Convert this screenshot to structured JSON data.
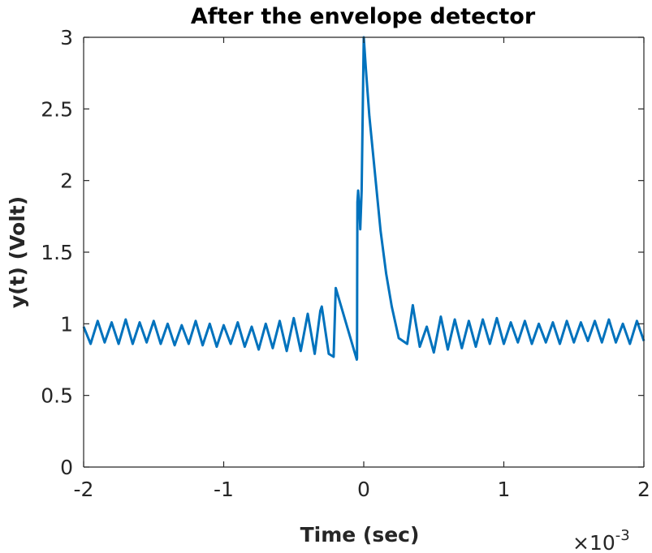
{
  "chart_data": {
    "type": "line",
    "title": "After the envelope detector",
    "xlabel": "Time (sec)",
    "ylabel": "y(t)  (Volt)",
    "x_exponent_base": "×10",
    "x_exponent_power": "-3",
    "x_scale": 0.001,
    "xlim": [
      -0.002,
      0.002
    ],
    "ylim": [
      0,
      3
    ],
    "x_ticks": [
      {
        "value": -0.002,
        "label": "-2"
      },
      {
        "value": -0.001,
        "label": "-1"
      },
      {
        "value": 0,
        "label": "0"
      },
      {
        "value": 0.001,
        "label": "1"
      },
      {
        "value": 0.002,
        "label": "2"
      }
    ],
    "y_ticks": [
      {
        "value": 0,
        "label": "0"
      },
      {
        "value": 0.5,
        "label": "0.5"
      },
      {
        "value": 1,
        "label": "1"
      },
      {
        "value": 1.5,
        "label": "1.5"
      },
      {
        "value": 2,
        "label": "2"
      },
      {
        "value": 2.5,
        "label": "2.5"
      },
      {
        "value": 3,
        "label": "3"
      }
    ],
    "grid": false,
    "line_color": "#0072BD",
    "series": [
      {
        "x": [
          -0.002,
          -0.00195,
          -0.0019,
          -0.00185,
          -0.0018,
          -0.00175,
          -0.0017,
          -0.00165,
          -0.0016,
          -0.00155,
          -0.0015,
          -0.00145,
          -0.0014,
          -0.00135,
          -0.0013,
          -0.00125,
          -0.0012,
          -0.00115,
          -0.0011,
          -0.00105,
          -0.001,
          -0.00095,
          -0.0009,
          -0.00085,
          -0.0008,
          -0.00075,
          -0.0007,
          -0.00065,
          -0.0006,
          -0.00055,
          -0.0005,
          -0.00045,
          -0.0004,
          -0.00035,
          -0.00031,
          -0.0003,
          -0.00025,
          -0.000215,
          -0.0002,
          -5e-05,
          -4.8e-05,
          -4.7e-05,
          -4.5e-05,
          -4e-05,
          -3e-05,
          -2.5e-05,
          -1.5e-05,
          0,
          1.5e-05,
          4e-05,
          8e-05,
          0.00012,
          0.00016,
          0.0002,
          0.00025,
          0.00031,
          0.00035,
          0.00036,
          0.0004,
          0.00045,
          0.0005,
          0.00055,
          0.0006,
          0.00065,
          0.0007,
          0.00075,
          0.0008,
          0.00085,
          0.0009,
          0.00095,
          0.001,
          0.00105,
          0.0011,
          0.00115,
          0.0012,
          0.00125,
          0.0013,
          0.00135,
          0.0014,
          0.00145,
          0.0015,
          0.00155,
          0.0016,
          0.00165,
          0.0017,
          0.00175,
          0.0018,
          0.00185,
          0.0019,
          0.00195,
          0.002
        ],
        "y": [
          0.98,
          0.86,
          1.02,
          0.87,
          1.01,
          0.86,
          1.03,
          0.86,
          1.01,
          0.87,
          1.02,
          0.86,
          1.0,
          0.85,
          0.99,
          0.86,
          1.02,
          0.85,
          1.0,
          0.84,
          0.99,
          0.86,
          1.01,
          0.84,
          0.98,
          0.82,
          1.0,
          0.83,
          1.02,
          0.81,
          1.04,
          0.81,
          1.07,
          0.79,
          1.09,
          1.12,
          0.79,
          0.77,
          1.25,
          0.75,
          0.76,
          1.3,
          1.85,
          1.93,
          1.78,
          1.66,
          1.93,
          3.0,
          2.78,
          2.45,
          2.05,
          1.65,
          1.35,
          1.12,
          0.9,
          0.86,
          1.13,
          1.07,
          0.84,
          0.98,
          0.8,
          1.05,
          0.82,
          1.03,
          0.83,
          1.02,
          0.84,
          1.03,
          0.86,
          1.04,
          0.86,
          1.01,
          0.87,
          1.02,
          0.86,
          1.0,
          0.87,
          1.01,
          0.86,
          1.02,
          0.87,
          1.01,
          0.88,
          1.02,
          0.87,
          1.03,
          0.87,
          1.0,
          0.86,
          1.02,
          0.88
        ]
      }
    ]
  }
}
